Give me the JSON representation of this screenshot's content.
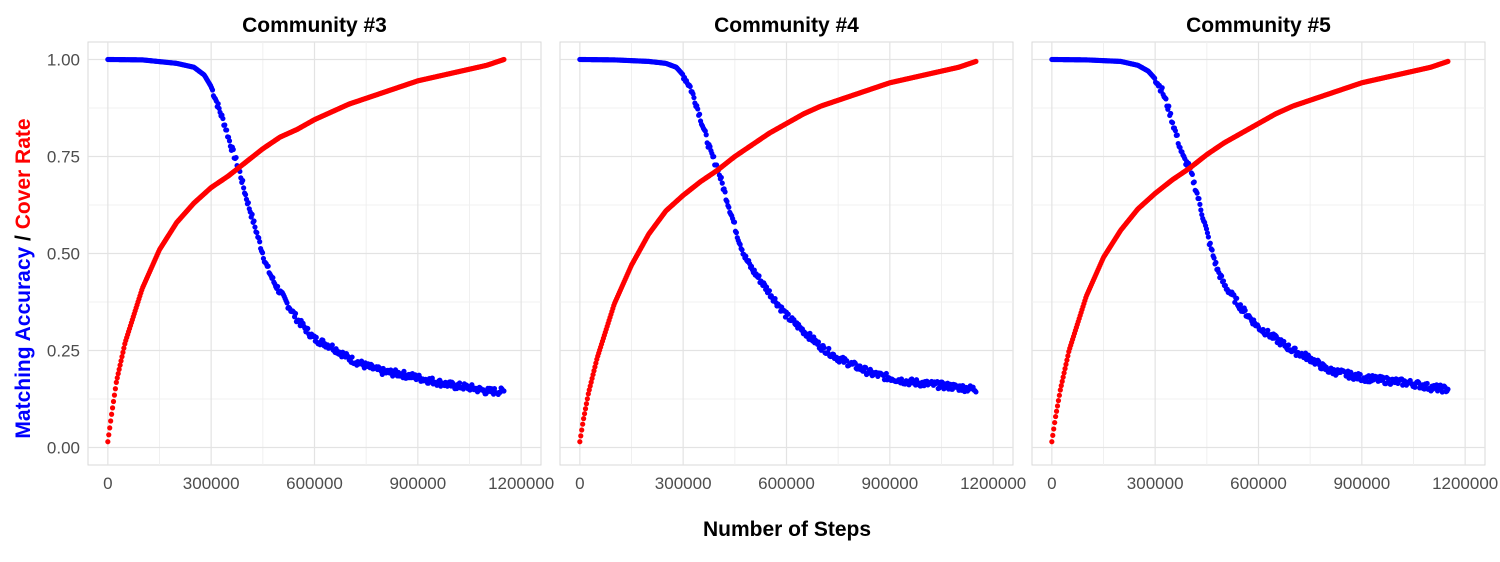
{
  "chart_data": {
    "type": "scatter",
    "xlabel": "Number of Steps",
    "ylabel_parts": [
      {
        "text": "Matching Accuracy",
        "color": "#0000ff"
      },
      {
        "text": " / ",
        "color": "#000000"
      },
      {
        "text": "Cover Rate",
        "color": "#ff0000"
      }
    ],
    "xlim": [
      0,
      1200000
    ],
    "ylim": [
      0,
      1
    ],
    "x_ticks": [
      0,
      300000,
      600000,
      900000,
      1200000
    ],
    "x_tick_labels": [
      "0",
      "300000",
      "600000",
      "900000",
      "1200000"
    ],
    "y_ticks": [
      0,
      0.25,
      0.5,
      0.75,
      1.0
    ],
    "y_tick_labels": [
      "0.00",
      "0.25",
      "0.50",
      "0.75",
      "1.00"
    ],
    "grid": true,
    "colors": {
      "accuracy": "#0000ff",
      "cover": "#ff0000"
    },
    "panels": [
      {
        "title": "Community #3",
        "series": [
          {
            "key": "accuracy",
            "color": "#0000ff",
            "x": [
              0,
              100000,
              200000,
              250000,
              280000,
              300000,
              320000,
              340000,
              360000,
              380000,
              400000,
              420000,
              440000,
              460000,
              480000,
              500000,
              550000,
              600000,
              650000,
              700000,
              750000,
              800000,
              850000,
              900000,
              950000,
              1000000,
              1050000,
              1100000,
              1150000
            ],
            "y": [
              1.0,
              0.999,
              0.99,
              0.98,
              0.96,
              0.93,
              0.88,
              0.83,
              0.77,
              0.72,
              0.65,
              0.59,
              0.53,
              0.47,
              0.43,
              0.4,
              0.33,
              0.28,
              0.26,
              0.23,
              0.21,
              0.195,
              0.19,
              0.18,
              0.17,
              0.16,
              0.155,
              0.145,
              0.145
            ]
          },
          {
            "key": "cover",
            "color": "#ff0000",
            "x": [
              0,
              10000,
              25000,
              50000,
              100000,
              150000,
              200000,
              250000,
              300000,
              350000,
              400000,
              450000,
              500000,
              550000,
              600000,
              650000,
              700000,
              800000,
              900000,
              1000000,
              1100000,
              1150000
            ],
            "y": [
              0.015,
              0.08,
              0.17,
              0.27,
              0.41,
              0.51,
              0.58,
              0.63,
              0.67,
              0.7,
              0.735,
              0.77,
              0.8,
              0.82,
              0.845,
              0.865,
              0.885,
              0.915,
              0.945,
              0.965,
              0.985,
              1.0
            ]
          }
        ]
      },
      {
        "title": "Community #4",
        "series": [
          {
            "key": "accuracy",
            "color": "#0000ff",
            "x": [
              0,
              100000,
              200000,
              250000,
              280000,
              300000,
              320000,
              340000,
              360000,
              380000,
              400000,
              420000,
              440000,
              460000,
              480000,
              500000,
              550000,
              600000,
              650000,
              700000,
              750000,
              800000,
              850000,
              900000,
              950000,
              1000000,
              1050000,
              1100000,
              1150000
            ],
            "y": [
              1.0,
              0.999,
              0.995,
              0.99,
              0.98,
              0.96,
              0.93,
              0.88,
              0.82,
              0.76,
              0.72,
              0.66,
              0.6,
              0.54,
              0.49,
              0.46,
              0.4,
              0.34,
              0.3,
              0.26,
              0.23,
              0.21,
              0.19,
              0.18,
              0.17,
              0.165,
              0.16,
              0.155,
              0.15
            ]
          },
          {
            "key": "cover",
            "color": "#ff0000",
            "x": [
              0,
              10000,
              25000,
              50000,
              100000,
              150000,
              200000,
              250000,
              300000,
              350000,
              400000,
              450000,
              500000,
              550000,
              600000,
              650000,
              700000,
              800000,
              900000,
              1000000,
              1100000,
              1150000
            ],
            "y": [
              0.015,
              0.07,
              0.14,
              0.23,
              0.37,
              0.47,
              0.55,
              0.61,
              0.65,
              0.685,
              0.715,
              0.75,
              0.78,
              0.81,
              0.835,
              0.86,
              0.88,
              0.91,
              0.94,
              0.96,
              0.98,
              0.995
            ]
          }
        ]
      },
      {
        "title": "Community #5",
        "series": [
          {
            "key": "accuracy",
            "color": "#0000ff",
            "x": [
              0,
              100000,
              200000,
              250000,
              280000,
              300000,
              320000,
              340000,
              360000,
              380000,
              400000,
              420000,
              440000,
              460000,
              480000,
              500000,
              550000,
              600000,
              650000,
              700000,
              750000,
              800000,
              850000,
              900000,
              950000,
              1000000,
              1050000,
              1100000,
              1150000
            ],
            "y": [
              1.0,
              0.999,
              0.995,
              0.985,
              0.97,
              0.95,
              0.92,
              0.87,
              0.81,
              0.75,
              0.72,
              0.66,
              0.59,
              0.52,
              0.46,
              0.42,
              0.36,
              0.31,
              0.28,
              0.25,
              0.23,
              0.2,
              0.19,
              0.18,
              0.175,
              0.17,
              0.165,
              0.155,
              0.15
            ]
          },
          {
            "key": "cover",
            "color": "#ff0000",
            "x": [
              0,
              10000,
              25000,
              50000,
              100000,
              150000,
              200000,
              250000,
              300000,
              350000,
              400000,
              450000,
              500000,
              550000,
              600000,
              650000,
              700000,
              800000,
              900000,
              1000000,
              1100000,
              1150000
            ],
            "y": [
              0.015,
              0.075,
              0.15,
              0.25,
              0.39,
              0.49,
              0.56,
              0.615,
              0.655,
              0.69,
              0.72,
              0.755,
              0.785,
              0.81,
              0.835,
              0.86,
              0.88,
              0.91,
              0.94,
              0.96,
              0.98,
              0.995
            ]
          }
        ]
      }
    ]
  }
}
